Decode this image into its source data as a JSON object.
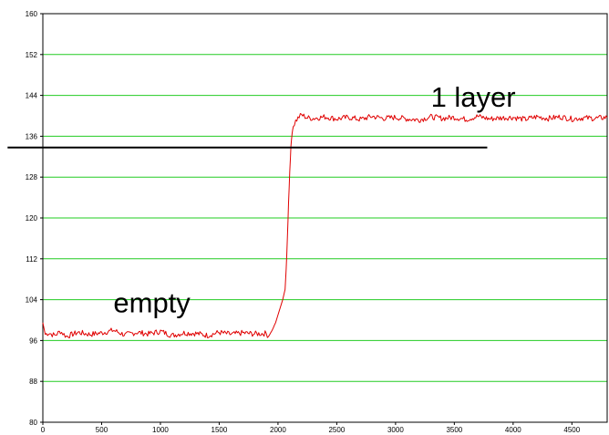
{
  "chart_data": {
    "type": "line",
    "title": "",
    "xlabel": "",
    "ylabel": "",
    "xlim": [
      0,
      4800
    ],
    "ylim": [
      80,
      160
    ],
    "x_ticks": [
      0,
      500,
      1000,
      1500,
      2000,
      2500,
      3000,
      3500,
      4000,
      4500
    ],
    "x_tick_labels": [
      "0",
      "500",
      "1000",
      "1500",
      "2000",
      "2500",
      "3000",
      "3500",
      "4000",
      "4500"
    ],
    "y_ticks": [
      80,
      88,
      96,
      104,
      112,
      120,
      128,
      136,
      144,
      152,
      160
    ],
    "y_tick_labels": [
      "80",
      "88",
      "96",
      "104",
      "112",
      "120",
      "128",
      "136",
      "144",
      "152",
      "160"
    ],
    "grid": "horizontal",
    "grid_color": "#22cc22",
    "series": [
      {
        "color": "#e00000",
        "x": [
          0,
          20,
          50,
          100,
          150,
          200,
          300,
          400,
          500,
          600,
          700,
          800,
          900,
          1000,
          1100,
          1200,
          1300,
          1400,
          1500,
          1600,
          1700,
          1800,
          1900,
          1920,
          1950,
          1980,
          2000,
          2020,
          2040,
          2060,
          2070,
          2080,
          2090,
          2100,
          2110,
          2120,
          2130,
          2150,
          2180,
          2200,
          2250,
          2300,
          2400,
          2500,
          2600,
          2700,
          2800,
          2900,
          3000,
          3100,
          3200,
          3300,
          3400,
          3500,
          3600,
          3700,
          3800,
          3900,
          4000,
          4100,
          4200,
          4300,
          4400,
          4500,
          4600,
          4700,
          4800
        ],
        "y": [
          99.5,
          97.2,
          97.5,
          97.0,
          97.8,
          96.8,
          97.6,
          97.2,
          97.5,
          98.0,
          97.1,
          97.6,
          97.3,
          97.8,
          97.0,
          97.5,
          97.4,
          97.0,
          97.6,
          97.2,
          97.5,
          97.3,
          97.4,
          96.8,
          98.0,
          99.5,
          101.0,
          102.5,
          104.0,
          106.0,
          110.0,
          116.0,
          123.0,
          129.0,
          134.0,
          136.5,
          138.0,
          139.0,
          139.8,
          140.2,
          139.6,
          139.5,
          139.8,
          139.4,
          139.7,
          139.3,
          139.9,
          139.5,
          139.7,
          139.4,
          139.2,
          139.8,
          139.5,
          139.7,
          139.3,
          139.9,
          139.4,
          139.6,
          139.7,
          139.3,
          139.8,
          139.5,
          139.8,
          139.4,
          139.6,
          139.5,
          139.7
        ]
      }
    ],
    "reference_line": {
      "color": "#000000",
      "y": 133.8,
      "x_start": -300,
      "x_end": 3780
    },
    "annotations": [
      {
        "text": "empty",
        "x": 600,
        "y": 101.5
      },
      {
        "text": "1 layer",
        "x": 3300,
        "y": 141.8
      }
    ]
  }
}
